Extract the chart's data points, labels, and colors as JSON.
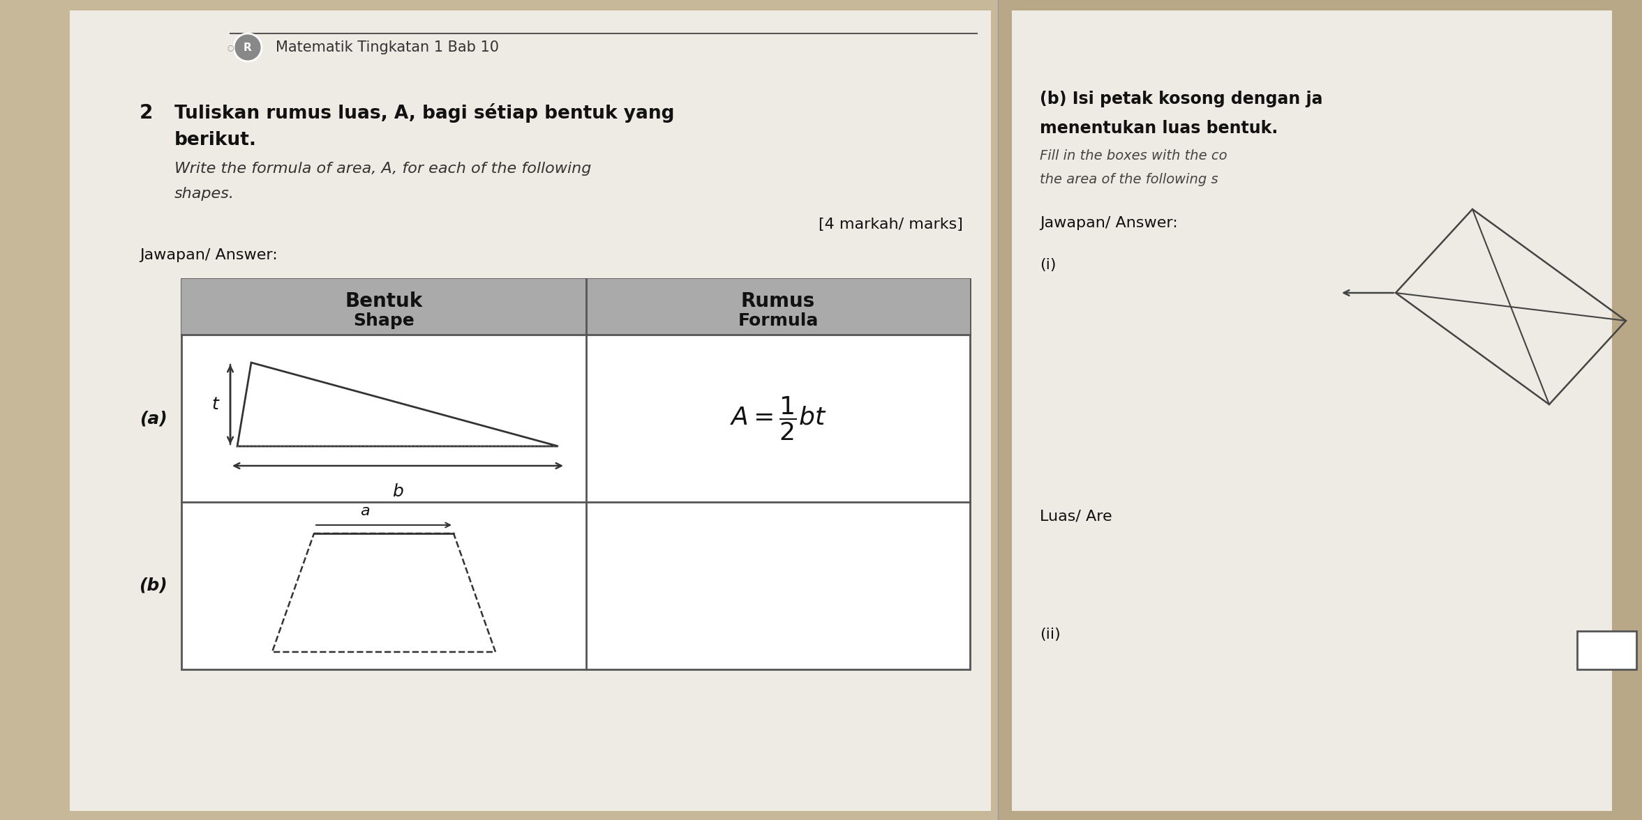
{
  "bg_color_left": "#c8b89a",
  "bg_color_right": "#b8a888",
  "paper_color": "#eeebe4",
  "header_text": "Matematik Tingkatan 1 Bab 10",
  "question_number": "2",
  "question_malay_line1": "Tuliskan rumus luas, A, bagi sétiap bentuk yang",
  "question_malay_line2": "berikut.",
  "question_english_line1": "Write the formula of area, A, for each of the following",
  "question_english_line2": "shapes.",
  "marks": "[4 markah/ marks]",
  "jawapan": "Jawapan/ Answer:",
  "col1_header_malay": "Bentuk",
  "col1_header_english": "Shape",
  "col2_header_malay": "Rumus",
  "col2_header_english": "Formula",
  "row_a_label": "(a)",
  "row_b_label": "(b)",
  "right_title_b": "(b) Isi petak kosong dengan ja",
  "right_subtitle_b1": "menentukan luas bentuk.",
  "right_subtitle_b2": "Fill in the boxes with the co",
  "right_subtitle_b3": "the area of the following s",
  "right_jawapan": "Jawapan/ Answer:",
  "right_i": "(i)",
  "right_luas": "Luas/ Are",
  "right_ii": "(ii)"
}
